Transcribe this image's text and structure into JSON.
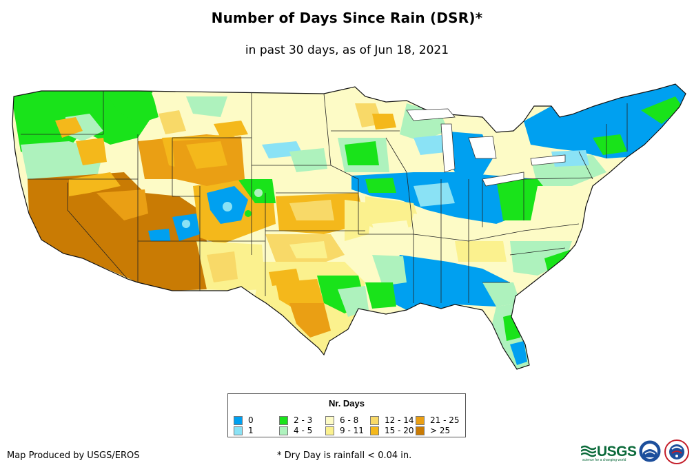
{
  "title": "Number of Days Since Rain (DSR)*",
  "subtitle": "in past 30 days, as of Jun 18, 2021",
  "legend": {
    "title": "Nr. Days",
    "items": [
      {
        "label": "0",
        "color": "#00a0f0"
      },
      {
        "label": "1",
        "color": "#8ae2f5"
      },
      {
        "label": "2 - 3",
        "color": "#19e31a"
      },
      {
        "label": "4 - 5",
        "color": "#aef2bd"
      },
      {
        "label": "6 - 8",
        "color": "#fdfbc6"
      },
      {
        "label": "9 - 11",
        "color": "#fbf18e"
      },
      {
        "label": "12 - 14",
        "color": "#f8d968"
      },
      {
        "label": "15 - 20",
        "color": "#f4b81b"
      },
      {
        "label": "21 - 25",
        "color": "#ea9f14"
      },
      {
        "label": "> 25",
        "color": "#c97b04"
      }
    ]
  },
  "credit": "Map Produced by USGS/EROS",
  "footnote": "* Dry Day is rainfall < 0.04 in.",
  "logos": {
    "usgs": "USGS",
    "usgs_tagline": "science for a changing world",
    "noaa_icon": "noaa-logo",
    "nws_icon": "nws-logo"
  }
}
